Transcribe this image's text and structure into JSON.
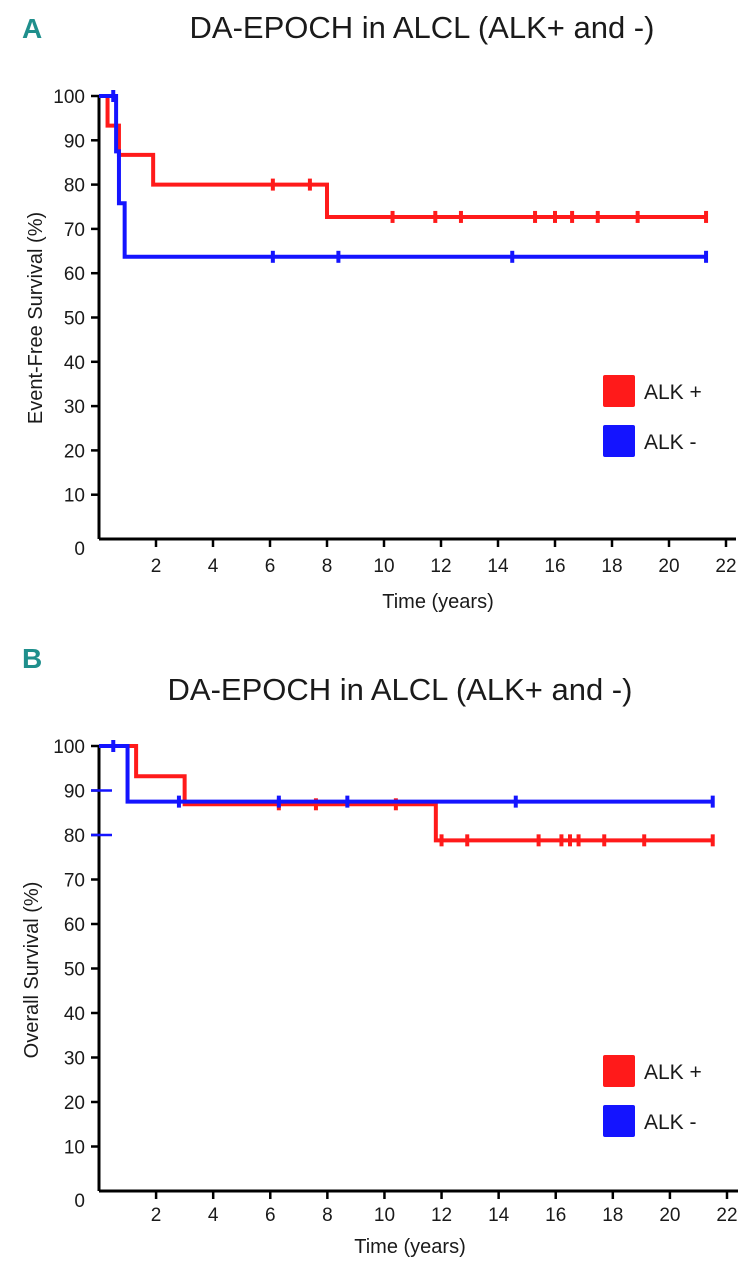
{
  "chart_data": [
    {
      "panel": "A",
      "type": "line",
      "title": "DA-EPOCH in ALCL (ALK+ and -)",
      "xlabel": "Time (years)",
      "ylabel": "Event-Free Survival (%)",
      "xlim": [
        0,
        22
      ],
      "ylim": [
        0,
        100
      ],
      "x_ticks": [
        "2",
        "4",
        "6",
        "8",
        "10",
        "12",
        "14",
        "16",
        "18",
        "20",
        "22"
      ],
      "y_ticks": [
        "0",
        "10",
        "20",
        "30",
        "40",
        "50",
        "60",
        "70",
        "80",
        "90",
        "100"
      ],
      "grid": false,
      "legend_position": "middle-right",
      "series": [
        {
          "name": "ALK +",
          "color": "#ff1a1a",
          "steps": [
            [
              0,
              100
            ],
            [
              0.3,
              93.3
            ],
            [
              0.7,
              86.7
            ],
            [
              1.9,
              80
            ],
            [
              8.0,
              72.7
            ],
            [
              21.3,
              72.7
            ]
          ],
          "censored": [
            [
              6.1,
              80
            ],
            [
              7.4,
              80
            ],
            [
              10.3,
              72.7
            ],
            [
              11.8,
              72.7
            ],
            [
              12.7,
              72.7
            ],
            [
              15.3,
              72.7
            ],
            [
              16.0,
              72.7
            ],
            [
              16.6,
              72.7
            ],
            [
              17.5,
              72.7
            ],
            [
              18.9,
              72.7
            ],
            [
              21.3,
              72.7
            ]
          ]
        },
        {
          "name": "ALK -",
          "color": "#1414ff",
          "steps": [
            [
              0,
              100
            ],
            [
              0.6,
              87.5
            ],
            [
              0.7,
              75.8
            ],
            [
              0.9,
              63.7
            ],
            [
              21.3,
              63.7
            ]
          ],
          "censored": [
            [
              0.5,
              100
            ],
            [
              6.1,
              63.7
            ],
            [
              8.4,
              63.7
            ],
            [
              14.5,
              63.7
            ],
            [
              21.3,
              63.7
            ]
          ]
        }
      ]
    },
    {
      "panel": "B",
      "type": "line",
      "title": "DA-EPOCH in ALCL (ALK+ and -)",
      "xlabel": "Time (years)",
      "ylabel": "Overall Survival (%)",
      "xlim": [
        0,
        22
      ],
      "ylim": [
        0,
        100
      ],
      "x_ticks": [
        "2",
        "4",
        "6",
        "8",
        "10",
        "12",
        "14",
        "16",
        "18",
        "20",
        "22"
      ],
      "y_ticks": [
        "0",
        "10",
        "20",
        "30",
        "40",
        "50",
        "60",
        "70",
        "80",
        "90",
        "100"
      ],
      "grid": false,
      "legend_position": "bottom-right",
      "series": [
        {
          "name": "ALK +",
          "color": "#ff1a1a",
          "steps": [
            [
              0,
              100
            ],
            [
              1.3,
              93.2
            ],
            [
              3.0,
              86.9
            ],
            [
              11.8,
              78.8
            ],
            [
              21.5,
              78.8
            ]
          ],
          "censored": [
            [
              6.3,
              86.9
            ],
            [
              7.6,
              86.9
            ],
            [
              10.4,
              86.9
            ],
            [
              12.0,
              78.8
            ],
            [
              12.9,
              78.8
            ],
            [
              15.4,
              78.8
            ],
            [
              16.2,
              78.8
            ],
            [
              16.5,
              78.8
            ],
            [
              16.8,
              78.8
            ],
            [
              17.7,
              78.8
            ],
            [
              19.1,
              78.8
            ],
            [
              21.5,
              78.8
            ]
          ]
        },
        {
          "name": "ALK -",
          "color": "#1414ff",
          "steps": [
            [
              0,
              100
            ],
            [
              1.0,
              87.5
            ],
            [
              21.5,
              87.5
            ]
          ],
          "censored": [
            [
              0.5,
              100
            ],
            [
              2.8,
              87.5
            ],
            [
              6.3,
              87.5
            ],
            [
              8.7,
              87.5
            ],
            [
              14.6,
              87.5
            ],
            [
              21.5,
              87.5
            ]
          ]
        }
      ]
    }
  ]
}
